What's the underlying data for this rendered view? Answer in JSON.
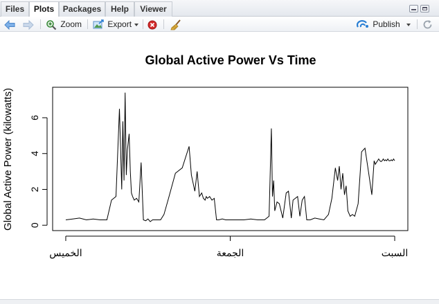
{
  "tabs": [
    {
      "label": "Files"
    },
    {
      "label": "Plots"
    },
    {
      "label": "Packages"
    },
    {
      "label": "Help"
    },
    {
      "label": "Viewer"
    }
  ],
  "active_tab": "Plots",
  "toolbar": {
    "zoom_label": "Zoom",
    "export_label": "Export",
    "publish_label": "Publish",
    "icons": [
      "arrow-left-icon",
      "arrow-right-icon",
      "zoom-icon",
      "export-icon",
      "remove-plot-icon",
      "broom-icon",
      "publish-icon",
      "refresh-icon"
    ]
  },
  "colors": {
    "accent": "#2a7fd4",
    "remove": "#cc2222",
    "line": "#000000"
  },
  "chart_data": {
    "type": "line",
    "title": "Global Active Power Vs Time",
    "ylabel": "Global Active Power (kilowatts)",
    "xlabel": "",
    "x_tick_labels": [
      "الخميس",
      "الجمعة",
      "السبت"
    ],
    "x_tick_positions": [
      0,
      1440,
      2880
    ],
    "y_ticks": [
      0,
      2,
      4,
      6
    ],
    "xlim": [
      -115,
      2995
    ],
    "ylim": [
      -0.3,
      7.7
    ],
    "grid": false,
    "legend": "none",
    "series": [
      {
        "x": [
          0,
          60,
          120,
          180,
          240,
          300,
          360,
          400,
          440,
          470,
          490,
          500,
          510,
          520,
          530,
          540,
          555,
          565,
          575,
          585,
          600,
          620,
          640,
          660,
          680,
          700,
          720,
          740,
          760,
          780,
          800,
          830,
          860,
          900,
          960,
          1020,
          1080,
          1100,
          1130,
          1150,
          1170,
          1190,
          1205,
          1220,
          1230,
          1240,
          1260,
          1280,
          1300,
          1320,
          1340,
          1370,
          1400,
          1440,
          1500,
          1560,
          1620,
          1680,
          1740,
          1780,
          1800,
          1810,
          1820,
          1830,
          1850,
          1870,
          1900,
          1930,
          1950,
          1975,
          1990,
          2010,
          2030,
          2050,
          2070,
          2090,
          2110,
          2140,
          2180,
          2220,
          2260,
          2300,
          2330,
          2360,
          2380,
          2395,
          2410,
          2425,
          2440,
          2455,
          2470,
          2490,
          2510,
          2530,
          2560,
          2590,
          2620,
          2650,
          2680,
          2700,
          2710,
          2720,
          2730,
          2740,
          2750,
          2760,
          2770,
          2780,
          2790,
          2800,
          2810,
          2820,
          2830,
          2840,
          2850,
          2860,
          2870,
          2880
        ],
        "y": [
          0.3,
          0.35,
          0.4,
          0.3,
          0.35,
          0.3,
          0.3,
          1.4,
          1.6,
          6.5,
          2.0,
          5.8,
          2.5,
          7.4,
          2.8,
          4.2,
          5.1,
          3.0,
          1.8,
          1.6,
          1.4,
          1.5,
          1.3,
          3.5,
          0.3,
          0.25,
          0.35,
          0.2,
          0.3,
          0.3,
          0.3,
          0.3,
          0.6,
          1.5,
          2.9,
          3.2,
          4.4,
          2.8,
          1.9,
          3.0,
          1.6,
          1.8,
          1.5,
          1.4,
          1.6,
          1.5,
          1.6,
          1.4,
          1.5,
          0.3,
          0.3,
          0.35,
          0.3,
          0.3,
          0.3,
          0.3,
          0.35,
          0.3,
          0.3,
          0.5,
          5.4,
          1.6,
          2.5,
          0.8,
          1.3,
          1.2,
          0.4,
          1.8,
          1.9,
          0.4,
          1.4,
          1.5,
          1.6,
          0.5,
          1.4,
          1.6,
          0.3,
          0.3,
          0.4,
          0.35,
          0.3,
          0.6,
          1.5,
          3.2,
          2.5,
          3.3,
          2.0,
          2.9,
          1.7,
          2.2,
          0.8,
          0.5,
          0.6,
          0.5,
          1.2,
          4.1,
          4.3,
          3.0,
          1.7,
          3.6,
          3.4,
          3.5,
          3.6,
          3.7,
          3.6,
          3.55,
          3.6,
          3.7,
          3.6,
          3.65,
          3.6,
          3.7,
          3.6,
          3.6,
          3.65,
          3.6,
          3.7,
          3.6
        ]
      }
    ]
  }
}
